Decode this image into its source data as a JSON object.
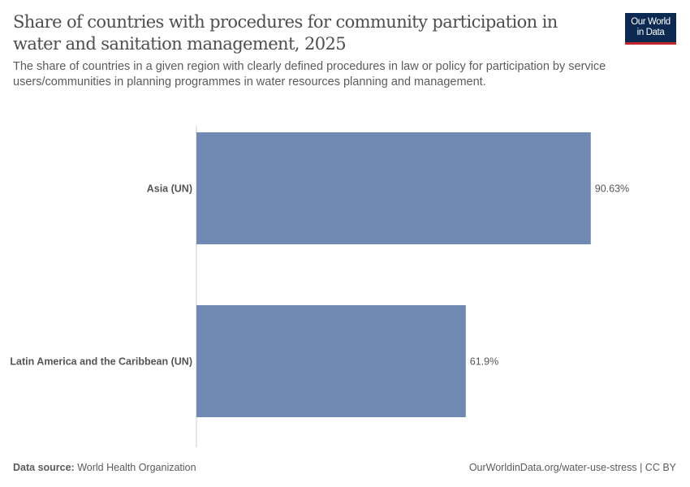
{
  "title": "Share of countries with procedures for community participation in water and sanitation management, 2025",
  "subtitle": "The share of countries in a given region with clearly defined procedures in law or policy for participation by service users/communities in planning programmes in water resources planning and management.",
  "logo": {
    "line1": "Our World",
    "line2": "in Data"
  },
  "footer": {
    "source_label": "Data source:",
    "source": "World Health Organization",
    "url": "OurWorldinData.org/water-use-stress | CC BY"
  },
  "colors": {
    "bar": "#6f89b2",
    "brand": "#0c2a51",
    "accent": "#c0252c"
  },
  "chart_data": {
    "type": "bar",
    "orientation": "horizontal",
    "categories": [
      "Asia (UN)",
      "Latin America and the Caribbean (UN)"
    ],
    "values": [
      90.63,
      61.9
    ],
    "value_labels": [
      "90.63%",
      "61.9%"
    ],
    "unit": "%",
    "xlim": [
      0,
      100
    ],
    "grid": false
  }
}
